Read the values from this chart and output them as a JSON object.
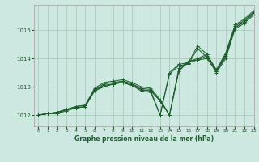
{
  "title": "Graphe pression niveau de la mer (hPa)",
  "bg_color": "#cce8e0",
  "grid_color": "#aaccbc",
  "line_color": "#1a5c2a",
  "spine_color": "#aaaaaa",
  "xlim": [
    -0.5,
    23
  ],
  "ylim": [
    1011.6,
    1015.9
  ],
  "yticks": [
    1012,
    1013,
    1014,
    1015
  ],
  "xticks": [
    0,
    1,
    2,
    3,
    4,
    5,
    6,
    7,
    8,
    9,
    10,
    11,
    12,
    13,
    14,
    15,
    16,
    17,
    18,
    19,
    20,
    21,
    22,
    23
  ],
  "series": [
    [
      1012.0,
      1012.05,
      1012.1,
      1012.2,
      1012.25,
      1012.3,
      1012.85,
      1013.0,
      1013.1,
      1013.15,
      1013.05,
      1012.9,
      1012.85,
      1012.0,
      1013.5,
      1013.8,
      1013.85,
      1014.45,
      1014.15,
      1013.55,
      1014.1,
      1015.1,
      1015.3,
      1015.65
    ],
    [
      1012.0,
      1012.05,
      1012.1,
      1012.2,
      1012.3,
      1012.35,
      1012.9,
      1013.1,
      1013.15,
      1013.2,
      1013.1,
      1012.95,
      1012.9,
      1012.5,
      1012.0,
      1013.6,
      1013.85,
      1013.95,
      1014.1,
      1013.6,
      1014.15,
      1015.15,
      1015.35,
      1015.65
    ],
    [
      1012.0,
      1012.05,
      1012.05,
      1012.2,
      1012.25,
      1012.3,
      1012.9,
      1013.05,
      1013.1,
      1013.2,
      1013.1,
      1012.9,
      1012.85,
      1012.5,
      1012.0,
      1013.55,
      1013.9,
      1013.95,
      1014.0,
      1013.55,
      1014.05,
      1015.1,
      1015.3,
      1015.6
    ],
    [
      1012.0,
      1012.05,
      1012.1,
      1012.2,
      1012.3,
      1012.35,
      1012.95,
      1013.15,
      1013.2,
      1013.25,
      1013.15,
      1013.0,
      1012.95,
      1012.55,
      1012.0,
      1013.65,
      1013.9,
      1014.0,
      1014.15,
      1013.6,
      1014.2,
      1015.2,
      1015.4,
      1015.7
    ],
    [
      1012.0,
      1012.05,
      1012.05,
      1012.15,
      1012.25,
      1012.3,
      1012.88,
      1013.0,
      1013.1,
      1013.15,
      1013.05,
      1012.85,
      1012.8,
      1012.0,
      1013.45,
      1013.75,
      1013.8,
      1014.35,
      1014.05,
      1013.5,
      1014.0,
      1015.05,
      1015.25,
      1015.55
    ]
  ]
}
